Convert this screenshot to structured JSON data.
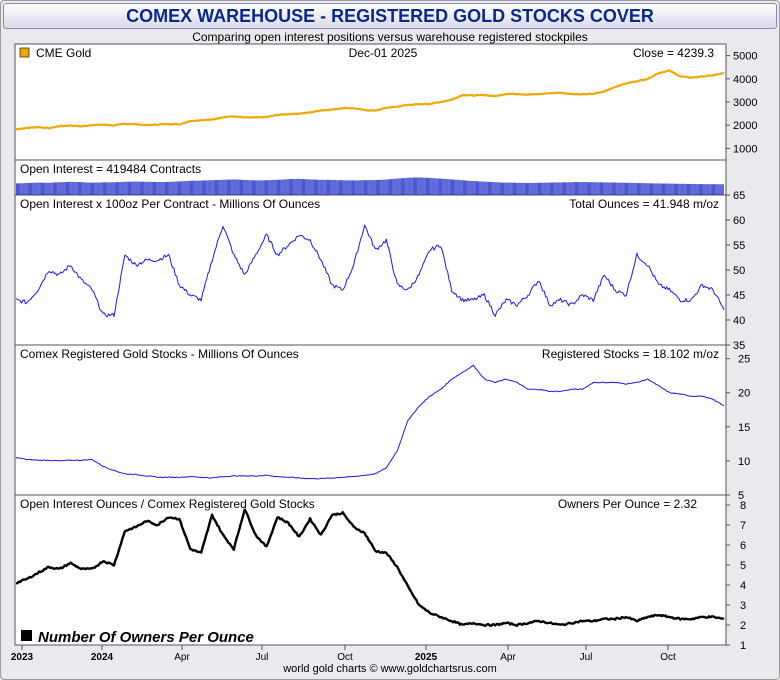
{
  "page": {
    "title": "COMEX WAREHOUSE - REGISTERED GOLD STOCKS COVER",
    "subtitle": "Comparing open interest positions versus warehouse registered stockpiles",
    "footer": "world gold charts © www.goldchartsrus.com"
  },
  "colors": {
    "gold": "#f0a800",
    "blue": "#1a1ae6",
    "bar": "#1c28c8",
    "black": "#000000"
  },
  "chart_data": {
    "type": "line",
    "x_ticks": [
      "2023",
      "2024",
      "Apr",
      "Jul",
      "Oct",
      "2025",
      "Apr",
      "Jul",
      "Oct"
    ],
    "panels": [
      {
        "id": "gold",
        "legend_label": "CME Gold",
        "center_label": "Dec-01  2025",
        "right_label": "Close = 4239.3",
        "ylim": [
          500,
          5500
        ],
        "y_ticks": [
          1000,
          2000,
          3000,
          4000,
          5000
        ],
        "series": [
          1830,
          1880,
          1920,
          1870,
          1960,
          1990,
          1950,
          2010,
          2020,
          1990,
          2060,
          2040,
          2000,
          2030,
          2050,
          2040,
          2180,
          2220,
          2240,
          2350,
          2380,
          2330,
          2330,
          2350,
          2440,
          2480,
          2500,
          2550,
          2640,
          2670,
          2740,
          2730,
          2650,
          2630,
          2750,
          2800,
          2880,
          2900,
          2920,
          3000,
          3100,
          3300,
          3280,
          3300,
          3250,
          3350,
          3350,
          3320,
          3340,
          3380,
          3400,
          3350,
          3330,
          3350,
          3450,
          3650,
          3800,
          3900,
          4000,
          4250,
          4350,
          4100,
          4050,
          4100,
          4150,
          4239
        ]
      },
      {
        "id": "oi_contracts",
        "left_label": "Open Interest = 419484 Contracts",
        "series": [
          440,
          450,
          460,
          455,
          470,
          480,
          470,
          460,
          465,
          470,
          480,
          485,
          480,
          475,
          478,
          490,
          505,
          510,
          520,
          530,
          540,
          525,
          515,
          520,
          530,
          545,
          555,
          540,
          530,
          525,
          520,
          515,
          520,
          525,
          540,
          560,
          580,
          590,
          575,
          560,
          540,
          520,
          500,
          485,
          470,
          460,
          455,
          450,
          455,
          460,
          465,
          470,
          475,
          470,
          465,
          460,
          455,
          450,
          445,
          440,
          435,
          430,
          425,
          422,
          420,
          419
        ]
      },
      {
        "id": "oi_ounces",
        "left_label": "Open Interest x 100oz Per Contract - Millions Of Ounces",
        "right_label": "Total Ounces = 41.948 m/oz",
        "ylim": [
          35,
          65
        ],
        "y_ticks": [
          35,
          40,
          45,
          50,
          55,
          60,
          65
        ],
        "series": [
          44,
          43.5,
          46,
          50,
          49,
          51,
          48,
          46,
          41,
          41,
          53,
          51,
          52,
          52,
          53,
          47,
          45,
          44,
          52,
          59,
          53,
          49,
          53,
          57,
          53,
          55,
          57,
          56,
          52,
          47,
          46,
          51,
          59,
          54,
          56,
          47,
          46,
          49,
          54,
          55,
          46,
          44,
          44,
          45,
          41,
          44,
          43,
          45,
          48,
          43,
          44,
          43,
          45,
          44,
          49,
          46,
          45,
          53,
          51,
          47,
          46,
          44,
          44,
          47,
          46,
          42
        ]
      },
      {
        "id": "registered",
        "left_label": "Comex Registered Gold Stocks - Millions Of Ounces",
        "right_label": "Registered Stocks = 18.102 m/oz",
        "ylim": [
          5,
          27
        ],
        "y_ticks": [
          5,
          10,
          15,
          20,
          25
        ],
        "series": [
          10.5,
          10.2,
          10.1,
          10.1,
          10.0,
          10.1,
          10.1,
          10.2,
          9.2,
          8.6,
          8.1,
          8.0,
          7.8,
          7.6,
          7.6,
          7.6,
          7.7,
          7.6,
          7.5,
          7.7,
          7.8,
          7.8,
          7.8,
          7.9,
          7.7,
          7.6,
          7.5,
          7.4,
          7.4,
          7.5,
          7.6,
          7.7,
          7.9,
          8.1,
          9.0,
          11.5,
          16.0,
          18.0,
          19.5,
          20.5,
          22.0,
          23.0,
          24.0,
          22.0,
          21.5,
          22.0,
          21.5,
          20.5,
          20.5,
          20.2,
          20.2,
          20.5,
          20.5,
          21.5,
          21.5,
          21.5,
          21.3,
          21.5,
          22.0,
          21.0,
          20.0,
          19.8,
          19.5,
          19.5,
          19.0,
          18.1
        ]
      },
      {
        "id": "owners",
        "left_label": "Open Interest Ounces / Comex Registered Gold Stocks",
        "right_label": "Owners Per Ounce = 2.32",
        "legend_label": "Number Of Owners Per Ounce",
        "ylim": [
          1,
          8.5
        ],
        "y_ticks": [
          1,
          2,
          3,
          4,
          5,
          6,
          7,
          8
        ],
        "series": [
          4.1,
          4.3,
          4.6,
          4.9,
          4.8,
          5.1,
          4.8,
          4.8,
          5.2,
          5.0,
          6.7,
          6.9,
          7.2,
          7.0,
          7.4,
          7.3,
          5.8,
          5.6,
          7.5,
          6.5,
          5.8,
          7.8,
          6.5,
          5.9,
          7.4,
          7.1,
          6.4,
          7.3,
          6.5,
          7.5,
          7.6,
          6.9,
          6.6,
          5.7,
          5.6,
          4.9,
          3.9,
          3.0,
          2.6,
          2.4,
          2.2,
          2.0,
          2.1,
          2.0,
          2.0,
          2.1,
          2.0,
          2.1,
          2.2,
          2.1,
          2.0,
          2.1,
          2.2,
          2.2,
          2.3,
          2.3,
          2.4,
          2.2,
          2.4,
          2.5,
          2.4,
          2.3,
          2.3,
          2.4,
          2.4,
          2.3
        ]
      }
    ]
  }
}
